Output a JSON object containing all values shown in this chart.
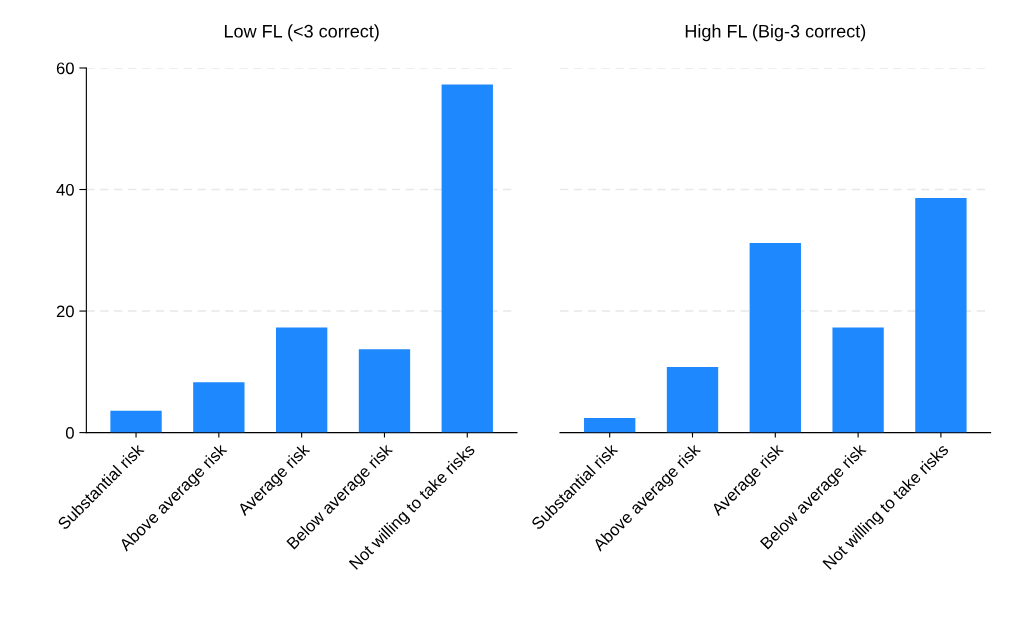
{
  "chart_data": [
    {
      "type": "bar",
      "title": "Low FL (<3 correct)",
      "categories": [
        "Substantial risk",
        "Above average risk",
        "Average risk",
        "Below average risk",
        "Not willing to take risks"
      ],
      "values": [
        3.6,
        8.3,
        17.3,
        13.7,
        57.3
      ],
      "color": "#1e88ff",
      "ylim": [
        0,
        60
      ],
      "yticks": [
        0,
        20,
        40,
        60
      ],
      "grid": "y"
    },
    {
      "type": "bar",
      "title": "High FL (Big-3 correct)",
      "categories": [
        "Substantial risk",
        "Above average risk",
        "Average risk",
        "Below average risk",
        "Not willing to take risks"
      ],
      "values": [
        2.4,
        10.8,
        31.2,
        17.3,
        38.6
      ],
      "color": "#1e88ff",
      "ylim": [
        0,
        60
      ],
      "yticks": [
        0,
        20,
        40,
        60
      ],
      "grid": "y",
      "tick_labels": "x"
    }
  ]
}
